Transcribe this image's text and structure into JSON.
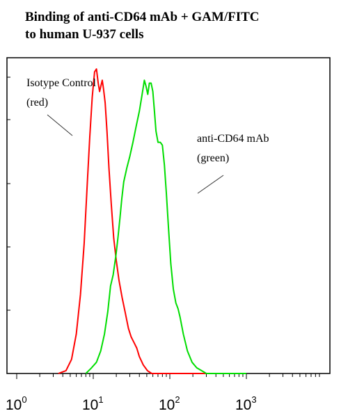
{
  "header": {
    "title_line1": "Binding of anti-CD64 mAb + GAM/FITC",
    "title_line2": "to human U-937 cells"
  },
  "chart_data": {
    "type": "line",
    "title": "Binding of anti-CD64 mAb + GAM/FITC to human U-937 cells",
    "xlabel": "",
    "ylabel": "",
    "x_scale": "log",
    "xlim": [
      1,
      10000
    ],
    "ylim": [
      0,
      1.12
    ],
    "grid": false,
    "x_ticks": [
      {
        "base": "10",
        "exp": "0",
        "value": 1
      },
      {
        "base": "10",
        "exp": "1",
        "value": 10
      },
      {
        "base": "10",
        "exp": "2",
        "value": 100
      },
      {
        "base": "10",
        "exp": "3",
        "value": 1000
      }
    ],
    "annotations": [
      {
        "line1": "Isotype Control",
        "line2": "(red)"
      },
      {
        "line1": "anti-CD64 mAb",
        "line2": "(green)"
      }
    ],
    "series": [
      {
        "color": "#ff0000",
        "points": [
          [
            3.5,
            0
          ],
          [
            4.4,
            0.01
          ],
          [
            5.2,
            0.05
          ],
          [
            6.0,
            0.14
          ],
          [
            6.8,
            0.28
          ],
          [
            7.6,
            0.46
          ],
          [
            8.3,
            0.66
          ],
          [
            9.0,
            0.84
          ],
          [
            9.7,
            0.98
          ],
          [
            10.4,
            1.07
          ],
          [
            11.0,
            1.08
          ],
          [
            11.6,
            1.03
          ],
          [
            12.1,
            1.0
          ],
          [
            12.6,
            1.02
          ],
          [
            13.1,
            1.04
          ],
          [
            13.6,
            1.01
          ],
          [
            14.3,
            0.96
          ],
          [
            15.1,
            0.86
          ],
          [
            16.0,
            0.73
          ],
          [
            17.2,
            0.6
          ],
          [
            18.5,
            0.48
          ],
          [
            20.0,
            0.4
          ],
          [
            21.7,
            0.33
          ],
          [
            23.8,
            0.27
          ],
          [
            26.0,
            0.22
          ],
          [
            28.8,
            0.16
          ],
          [
            31.2,
            0.13
          ],
          [
            34.0,
            0.11
          ],
          [
            37.0,
            0.09
          ],
          [
            40.0,
            0.06
          ],
          [
            45.0,
            0.03
          ],
          [
            51.0,
            0.01
          ],
          [
            58.0,
            0.0
          ],
          [
            100,
            0
          ],
          [
            1000,
            0
          ]
        ]
      },
      {
        "color": "#00dd00",
        "points": [
          [
            8.0,
            0
          ],
          [
            9.5,
            0.02
          ],
          [
            11.0,
            0.04
          ],
          [
            12.5,
            0.08
          ],
          [
            14.0,
            0.14
          ],
          [
            15.5,
            0.22
          ],
          [
            16.8,
            0.31
          ],
          [
            18.2,
            0.35
          ],
          [
            19.8,
            0.42
          ],
          [
            21.0,
            0.48
          ],
          [
            22.3,
            0.55
          ],
          [
            23.6,
            0.62
          ],
          [
            25.0,
            0.68
          ],
          [
            27.5,
            0.73
          ],
          [
            30.0,
            0.77
          ],
          [
            33.0,
            0.82
          ],
          [
            36.5,
            0.88
          ],
          [
            40.0,
            0.93
          ],
          [
            43.5,
            0.99
          ],
          [
            46.5,
            1.04
          ],
          [
            48.8,
            1.02
          ],
          [
            51.5,
            0.99
          ],
          [
            54.0,
            1.03
          ],
          [
            57.0,
            1.03
          ],
          [
            60.0,
            1.0
          ],
          [
            63.0,
            0.93
          ],
          [
            66.0,
            0.86
          ],
          [
            70.0,
            0.82
          ],
          [
            75.0,
            0.82
          ],
          [
            80.0,
            0.81
          ],
          [
            85.0,
            0.74
          ],
          [
            90.0,
            0.64
          ],
          [
            96.0,
            0.52
          ],
          [
            103.0,
            0.39
          ],
          [
            111.0,
            0.3
          ],
          [
            120.0,
            0.25
          ],
          [
            128.0,
            0.23
          ],
          [
            136.0,
            0.2
          ],
          [
            150.0,
            0.14
          ],
          [
            170.0,
            0.08
          ],
          [
            195.0,
            0.04
          ],
          [
            225.0,
            0.02
          ],
          [
            260.0,
            0.01
          ],
          [
            300.0,
            0.0
          ],
          [
            1000,
            0
          ]
        ]
      }
    ]
  }
}
